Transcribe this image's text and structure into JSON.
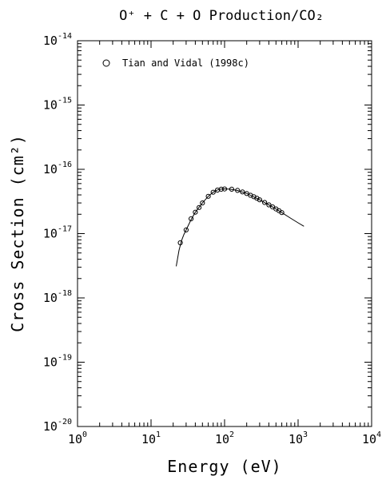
{
  "chart_data": {
    "type": "scatter",
    "title": "O⁺ + C + O Production/CO₂",
    "xlabel": "Energy (eV)",
    "ylabel": "Cross Section (cm²)",
    "x_scale": "log",
    "y_scale": "log",
    "xlim": [
      1,
      10000
    ],
    "ylim": [
      1e-20,
      1e-14
    ],
    "x_ticks": [
      {
        "base": "10",
        "exp": "0"
      },
      {
        "base": "10",
        "exp": "1"
      },
      {
        "base": "10",
        "exp": "2"
      },
      {
        "base": "10",
        "exp": "3"
      },
      {
        "base": "10",
        "exp": "4"
      }
    ],
    "y_ticks": [
      {
        "base": "10",
        "exp": "-20"
      },
      {
        "base": "10",
        "exp": "-19"
      },
      {
        "base": "10",
        "exp": "-18"
      },
      {
        "base": "10",
        "exp": "-17"
      },
      {
        "base": "10",
        "exp": "-16"
      },
      {
        "base": "10",
        "exp": "-15"
      },
      {
        "base": "10",
        "exp": "-14"
      }
    ],
    "grid": false,
    "legend_position": "top-left",
    "series": [
      {
        "name": "Tian and Vidal (1998c)",
        "marker": "open-circle",
        "x": [
          25,
          30,
          35,
          40,
          45,
          50,
          60,
          70,
          80,
          90,
          100,
          125,
          150,
          175,
          200,
          225,
          250,
          275,
          300,
          350,
          400,
          450,
          500,
          550,
          600
        ],
        "y": [
          7.2e-18,
          1.14e-17,
          1.7e-17,
          2.15e-17,
          2.55e-17,
          3e-17,
          3.8e-17,
          4.4e-17,
          4.75e-17,
          4.9e-17,
          4.95e-17,
          4.9e-17,
          4.7e-17,
          4.45e-17,
          4.2e-17,
          3.95e-17,
          3.75e-17,
          3.55e-17,
          3.35e-17,
          3.05e-17,
          2.8e-17,
          2.6e-17,
          2.42e-17,
          2.27e-17,
          2.12e-17
        ]
      },
      {
        "name": "",
        "marker": "line",
        "x": [
          22,
          24,
          26,
          28,
          30,
          35,
          40,
          50,
          60,
          70,
          80,
          90,
          100,
          120,
          150,
          200,
          300,
          400,
          500,
          600,
          800,
          1000,
          1200
        ],
        "y": [
          3.1e-18,
          5.5e-18,
          7.8e-18,
          9.7e-18,
          1.14e-17,
          1.65e-17,
          2.15e-17,
          3e-17,
          3.8e-17,
          4.4e-17,
          4.78e-17,
          4.92e-17,
          4.96e-17,
          4.9e-17,
          4.68e-17,
          4.22e-17,
          3.35e-17,
          2.8e-17,
          2.42e-17,
          2.12e-17,
          1.72e-17,
          1.47e-17,
          1.3e-17
        ]
      }
    ]
  }
}
